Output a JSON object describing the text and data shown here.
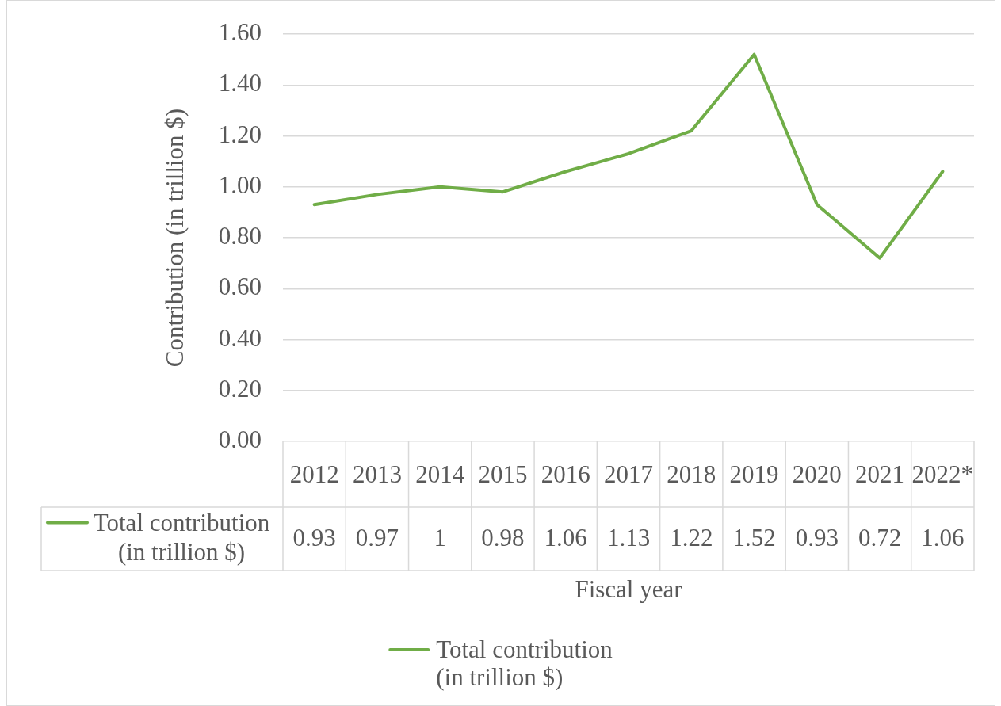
{
  "chart_data": {
    "type": "line",
    "xlabel": "Fiscal year",
    "ylabel": "Contribution (in trillion $)",
    "categories": [
      "2012",
      "2013",
      "2014",
      "2015",
      "2016",
      "2017",
      "2018",
      "2019",
      "2020",
      "2021",
      "2022*"
    ],
    "series": [
      {
        "name": "Total contribution (in trillion $)",
        "color": "#70ad47",
        "values": [
          0.93,
          0.97,
          1,
          0.98,
          1.06,
          1.13,
          1.22,
          1.52,
          0.93,
          0.72,
          1.06
        ]
      }
    ],
    "ylim": [
      0,
      1.6
    ],
    "yticks": [
      {
        "value": 0,
        "label": "0.00"
      },
      {
        "value": 0.2,
        "label": "0.20"
      },
      {
        "value": 0.4,
        "label": "0.40"
      },
      {
        "value": 0.6,
        "label": "0.60"
      },
      {
        "value": 0.8,
        "label": "0.80"
      },
      {
        "value": 1,
        "label": "1.00"
      },
      {
        "value": 1.2,
        "label": "1.20"
      },
      {
        "value": 1.4,
        "label": "1.40"
      },
      {
        "value": 1.6,
        "label": "1.60"
      }
    ],
    "grid": "y",
    "legend": "bottom",
    "line_style": "solid",
    "data_labels": true
  }
}
